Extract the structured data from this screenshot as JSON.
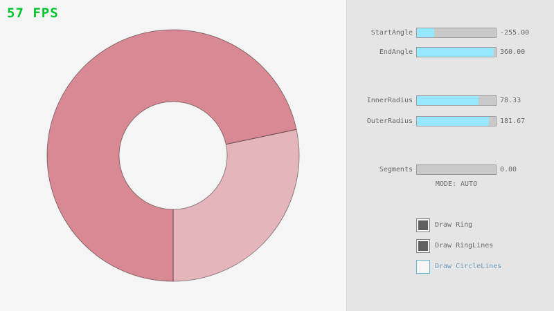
{
  "fps": {
    "label": "57 FPS"
  },
  "colors": {
    "bg": "#f5f5f5",
    "panel_bg": "#e5e5e5",
    "fps_green": "#00c42c",
    "text_gray": "#686868",
    "slider_track": "#c9c9c9",
    "slider_border": "#9c9c9c",
    "slider_fill": "#97e8ff",
    "checkbox_border": "#838383",
    "checkbox_mark": "#5f5f5f",
    "focus_blue_border": "#5bb2d9",
    "focus_blue_text": "#6c9bbc",
    "ring_line": "rgba(0,0,0,0.42)"
  },
  "ring": {
    "color_dark": "#d98994",
    "color_light": "#e5b5bc",
    "start_angle": -255.0,
    "end_angle": 360.0,
    "inner_radius": 78.33,
    "outer_radius": 181.67,
    "segments": 0,
    "mode": "AUTO"
  },
  "controls": {
    "sliders": [
      {
        "id": "start-angle",
        "label": "StartAngle",
        "value": "-255.00",
        "fill": 0.22
      },
      {
        "id": "end-angle",
        "label": "EndAngle",
        "value": "360.00",
        "fill": 0.97
      },
      {
        "id": "inner-radius",
        "label": "InnerRadius",
        "value": "78.33",
        "fill": 0.78
      },
      {
        "id": "outer-radius",
        "label": "OuterRadius",
        "value": "181.67",
        "fill": 0.91
      },
      {
        "id": "segments",
        "label": "Segments",
        "value": "0.00",
        "fill": 0.0
      }
    ],
    "mode_text": "MODE: AUTO",
    "checkboxes": [
      {
        "id": "draw-ring",
        "label": "Draw Ring",
        "checked": true,
        "focused": false
      },
      {
        "id": "draw-ringlines",
        "label": "Draw RingLines",
        "checked": true,
        "focused": false
      },
      {
        "id": "draw-circlelines",
        "label": "Draw CircleLines",
        "checked": false,
        "focused": true
      }
    ]
  }
}
